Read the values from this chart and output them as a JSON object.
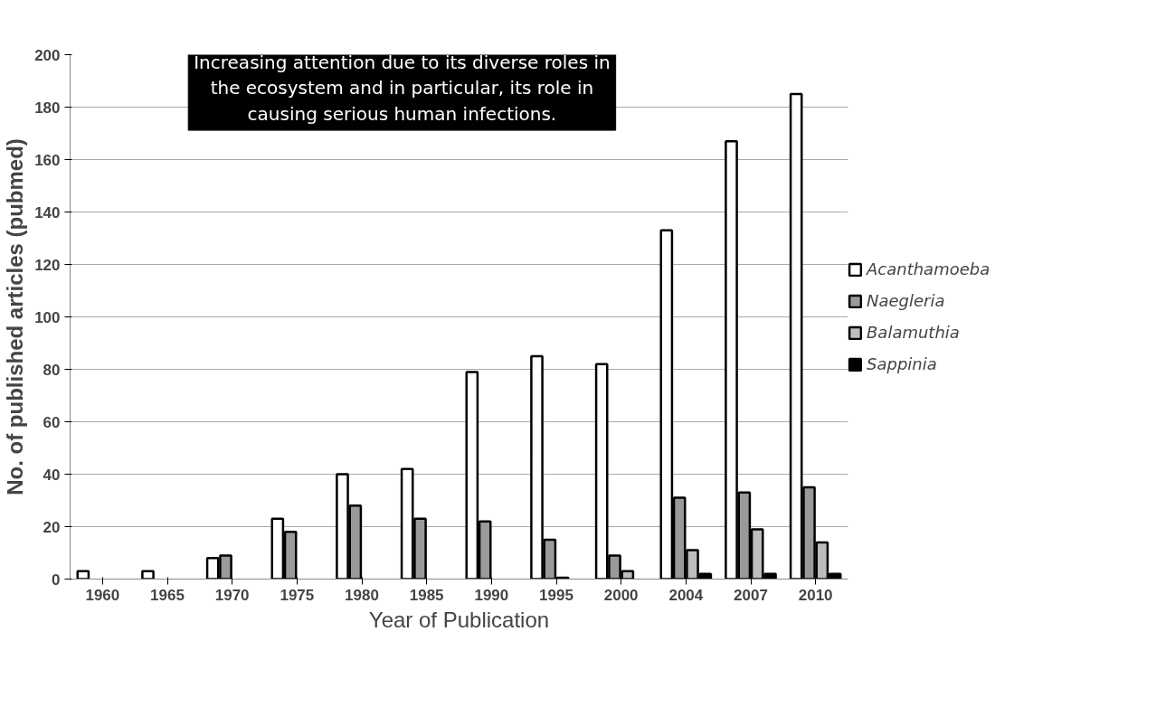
{
  "chart_data": {
    "type": "bar",
    "xlabel": "Year of Publication",
    "ylabel": "No. of published articles (pubmed)",
    "annotations": [
      "Increasing attention due to its diverse roles in the ecosystem and in particular, its role in causing serious human infections."
    ],
    "categories": [
      "1960",
      "1965",
      "1970",
      "1975",
      "1980",
      "1985",
      "1990",
      "1995",
      "2000",
      "2004",
      "2007",
      "2010"
    ],
    "series": [
      {
        "name": "Acanthamoeba",
        "color": "#ffffff",
        "values": [
          3,
          3,
          8,
          23,
          40,
          42,
          79,
          85,
          82,
          133,
          167,
          185
        ]
      },
      {
        "name": "Naegleria",
        "color": "#9a9a9a",
        "values": [
          null,
          null,
          9,
          18,
          28,
          23,
          22,
          15,
          9,
          31,
          33,
          35
        ]
      },
      {
        "name": "Balamuthia",
        "color": "#bdbdbd",
        "values": [
          null,
          null,
          null,
          null,
          null,
          null,
          null,
          0.5,
          3,
          11,
          19,
          14
        ]
      },
      {
        "name": "Sappinia",
        "color": "#000000",
        "values": [
          null,
          null,
          null,
          null,
          null,
          null,
          null,
          null,
          null,
          2,
          2,
          2
        ]
      }
    ],
    "ylim": [
      0,
      200
    ],
    "yticks": [
      0,
      20,
      40,
      60,
      80,
      100,
      120,
      140,
      160,
      180,
      200
    ],
    "grid": "y",
    "legend": "right"
  }
}
